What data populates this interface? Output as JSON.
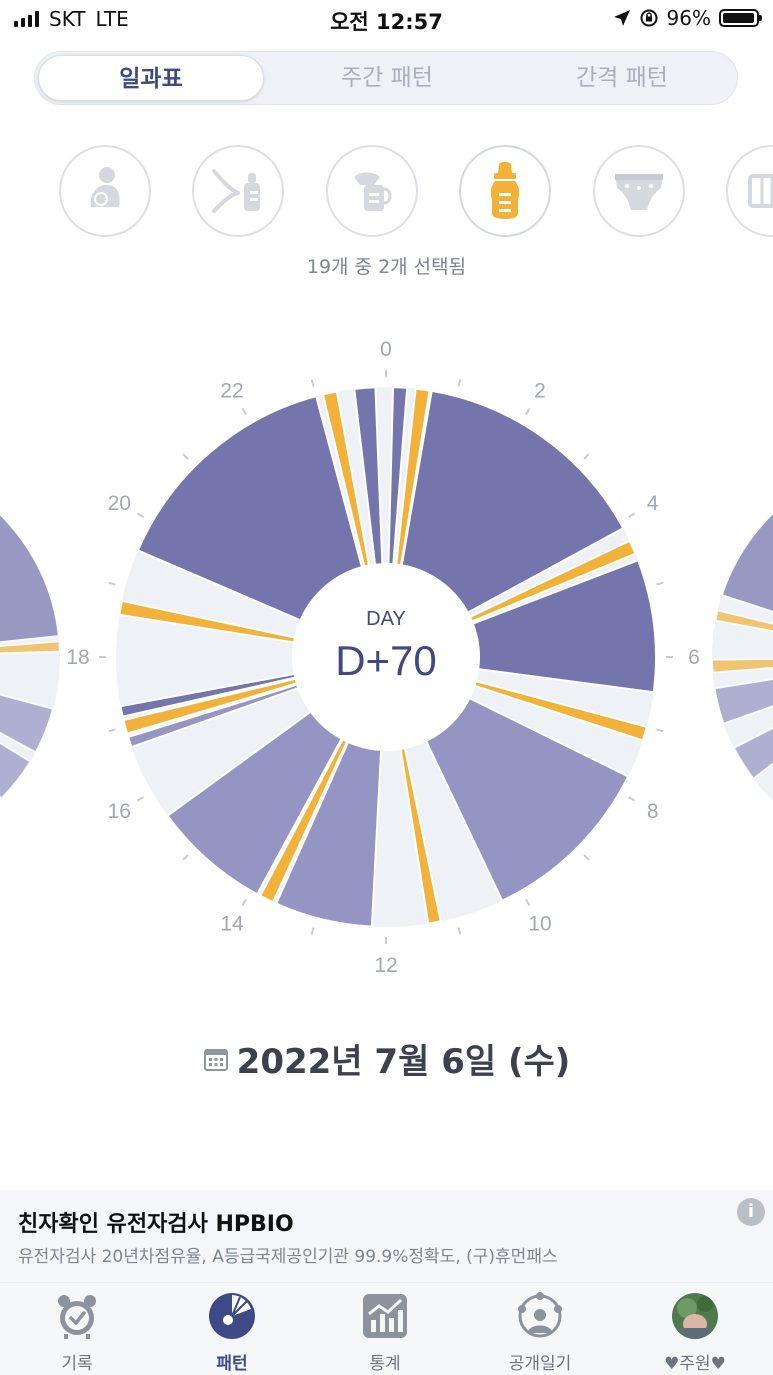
{
  "status_bar": {
    "carrier": "SKT",
    "network": "LTE",
    "time": "오전 12:57",
    "battery": "96%",
    "battery_level": 0.96
  },
  "segmented_tabs": [
    {
      "label": "일과표",
      "active": true
    },
    {
      "label": "주간 패턴",
      "active": false
    },
    {
      "label": "간격 패턴",
      "active": false
    }
  ],
  "category_icons": [
    {
      "icon": "breastfeeding-icon",
      "selected": false
    },
    {
      "icon": "bottle-feeding-icon",
      "selected": false
    },
    {
      "icon": "breast-pump-icon",
      "selected": false
    },
    {
      "icon": "baby-bottle-icon",
      "selected": true
    },
    {
      "icon": "diaper-icon",
      "selected": false
    },
    {
      "icon": "crib-icon",
      "selected": false
    }
  ],
  "selection_status": "19개 중 2개 선택됨",
  "clock": {
    "center_label": "DAY",
    "center_value": "D+70",
    "hour_labels": [
      "0",
      "2",
      "4",
      "6",
      "8",
      "10",
      "12",
      "14",
      "16",
      "18",
      "20",
      "22"
    ],
    "colors": {
      "sleep_dark": "#7475ad",
      "sleep_light": "#9595c3",
      "feeding": "#f2b23a",
      "awake": "#eef1f5"
    },
    "segments": [
      {
        "type": "sleep_dark",
        "start": 23.55,
        "end": 23.85
      },
      {
        "type": "sleep_dark",
        "start": 0.1,
        "end": 0.3
      },
      {
        "type": "feeding",
        "start": 0.42,
        "end": 0.62
      },
      {
        "type": "sleep_dark",
        "start": 0.65,
        "end": 4.1
      },
      {
        "type": "feeding",
        "start": 4.3,
        "end": 4.5
      },
      {
        "type": "sleep_dark",
        "start": 4.6,
        "end": 6.5
      },
      {
        "type": "feeding",
        "start": 7.0,
        "end": 7.2
      },
      {
        "type": "sleep_light",
        "start": 7.75,
        "end": 10.3
      },
      {
        "type": "feeding",
        "start": 11.22,
        "end": 11.4
      },
      {
        "type": "sleep_light",
        "start": 12.2,
        "end": 13.6
      },
      {
        "type": "feeding",
        "start": 13.65,
        "end": 13.85
      },
      {
        "type": "sleep_light",
        "start": 13.9,
        "end": 15.6
      },
      {
        "type": "sleep_light",
        "start": 16.7,
        "end": 16.85
      },
      {
        "type": "feeding",
        "start": 16.9,
        "end": 17.1
      },
      {
        "type": "sleep_dark",
        "start": 17.15,
        "end": 17.3
      },
      {
        "type": "feeding",
        "start": 18.6,
        "end": 18.8
      },
      {
        "type": "sleep_dark",
        "start": 19.55,
        "end": 23.0
      },
      {
        "type": "feeding",
        "start": 23.1,
        "end": 23.3
      }
    ]
  },
  "date": "2022년 7월 6일 (수)",
  "ad": {
    "title": "친자확인 유전자검사 HPBIO",
    "description": "유전자검사 20년차점유율, A등급국제공인기관 99.9%정확도, (구)휴먼패스",
    "info": "i"
  },
  "tabbar": [
    {
      "label": "기록",
      "icon": "alarm-clock-icon",
      "active": false
    },
    {
      "label": "패턴",
      "icon": "pattern-clock-icon",
      "active": true
    },
    {
      "label": "통계",
      "icon": "statistics-chart-icon",
      "active": false
    },
    {
      "label": "공개일기",
      "icon": "public-diary-icon",
      "active": false
    },
    {
      "label": "♥주원♥",
      "icon": "profile-avatar",
      "active": false
    }
  ]
}
